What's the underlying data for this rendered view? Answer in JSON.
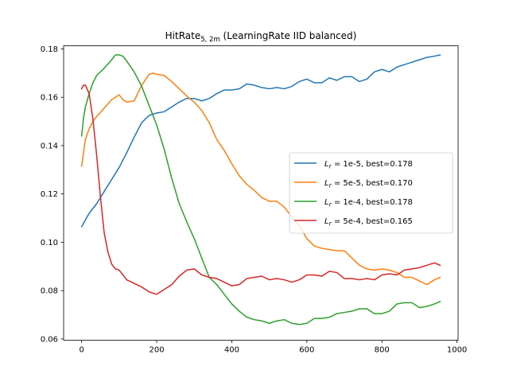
{
  "chart_data": {
    "type": "line",
    "title": {
      "main": "HitRate",
      "subscript": "5, 2m",
      "rest": " (LearningRate IID balanced)"
    },
    "xlabel": "",
    "ylabel": "",
    "xlim": [
      -48,
      1003
    ],
    "ylim": [
      0.0595,
      0.1813
    ],
    "xticks": [
      0,
      200,
      400,
      600,
      800,
      1000
    ],
    "yticks": [
      0.06,
      0.08,
      0.1,
      0.12,
      0.14,
      0.16,
      0.18
    ],
    "xtick_labels": [
      "0",
      "200",
      "400",
      "600",
      "800",
      "1000"
    ],
    "ytick_labels": [
      "0.06",
      "0.08",
      "0.10",
      "0.12",
      "0.14",
      "0.16",
      "0.18"
    ],
    "grid": false,
    "legend_position": "center-right",
    "series": [
      {
        "name": "1e-5",
        "best_label": ", best=0.178",
        "color": "#1f77b4",
        "x": [
          0,
          20,
          40,
          60,
          80,
          100,
          120,
          140,
          160,
          180,
          200,
          220,
          240,
          260,
          280,
          300,
          320,
          340,
          360,
          380,
          400,
          420,
          440,
          460,
          480,
          500,
          520,
          540,
          560,
          580,
          600,
          620,
          640,
          660,
          680,
          700,
          720,
          740,
          760,
          780,
          800,
          820,
          840,
          860,
          880,
          900,
          920,
          940,
          955
        ],
        "y": [
          0.1065,
          0.112,
          0.116,
          0.121,
          0.126,
          0.131,
          0.137,
          0.1435,
          0.1495,
          0.1525,
          0.1535,
          0.154,
          0.156,
          0.158,
          0.1595,
          0.1595,
          0.1585,
          0.1595,
          0.1615,
          0.163,
          0.163,
          0.1635,
          0.1655,
          0.165,
          0.164,
          0.1635,
          0.164,
          0.1635,
          0.1645,
          0.1665,
          0.1675,
          0.166,
          0.166,
          0.168,
          0.167,
          0.1685,
          0.1685,
          0.1665,
          0.1675,
          0.1705,
          0.1715,
          0.1705,
          0.1725,
          0.1735,
          0.1745,
          0.1755,
          0.1765,
          0.177,
          0.1775
        ]
      },
      {
        "name": "5e-5",
        "best_label": ", best=0.170",
        "color": "#ff7f0e",
        "x": [
          0,
          10,
          20,
          30,
          40,
          60,
          80,
          100,
          110,
          120,
          140,
          160,
          180,
          190,
          200,
          220,
          240,
          260,
          280,
          300,
          320,
          340,
          360,
          380,
          400,
          420,
          440,
          460,
          480,
          500,
          520,
          540,
          560,
          580,
          600,
          620,
          640,
          660,
          680,
          700,
          720,
          740,
          760,
          780,
          800,
          820,
          840,
          860,
          880,
          900,
          920,
          940,
          955
        ],
        "y": [
          0.1315,
          0.1425,
          0.147,
          0.15,
          0.152,
          0.1555,
          0.159,
          0.161,
          0.159,
          0.158,
          0.1585,
          0.165,
          0.1695,
          0.17,
          0.1695,
          0.169,
          0.1665,
          0.1635,
          0.1605,
          0.158,
          0.1545,
          0.1495,
          0.1425,
          0.138,
          0.1325,
          0.1275,
          0.124,
          0.1215,
          0.1185,
          0.117,
          0.117,
          0.1145,
          0.1105,
          0.107,
          0.1015,
          0.0985,
          0.0975,
          0.097,
          0.0965,
          0.0965,
          0.0935,
          0.0905,
          0.089,
          0.0885,
          0.089,
          0.0885,
          0.0875,
          0.0855,
          0.0855,
          0.084,
          0.0825,
          0.0845,
          0.0855
        ]
      },
      {
        "name": "1e-4",
        "best_label": ", best=0.178",
        "color": "#2ca02c",
        "x": [
          0,
          5,
          10,
          20,
          30,
          40,
          60,
          80,
          90,
          100,
          110,
          120,
          140,
          160,
          180,
          200,
          220,
          240,
          260,
          280,
          300,
          320,
          340,
          360,
          380,
          400,
          420,
          440,
          460,
          480,
          500,
          520,
          540,
          560,
          580,
          600,
          620,
          640,
          660,
          680,
          700,
          720,
          740,
          760,
          780,
          800,
          820,
          840,
          860,
          880,
          900,
          920,
          940,
          955
        ],
        "y": [
          0.144,
          0.1515,
          0.156,
          0.1615,
          0.166,
          0.169,
          0.172,
          0.1755,
          0.1775,
          0.1775,
          0.177,
          0.175,
          0.1705,
          0.1645,
          0.1565,
          0.1485,
          0.1385,
          0.1265,
          0.116,
          0.1085,
          0.1015,
          0.0935,
          0.0855,
          0.0825,
          0.0785,
          0.0745,
          0.0715,
          0.069,
          0.068,
          0.0675,
          0.0665,
          0.0675,
          0.068,
          0.0665,
          0.066,
          0.0665,
          0.0685,
          0.0685,
          0.069,
          0.0705,
          0.071,
          0.0715,
          0.0725,
          0.0725,
          0.0705,
          0.0705,
          0.0715,
          0.0745,
          0.075,
          0.075,
          0.073,
          0.0735,
          0.0745,
          0.0755
        ]
      },
      {
        "name": "5e-4",
        "best_label": ", best=0.165",
        "color": "#d62728",
        "x": [
          0,
          5,
          10,
          20,
          30,
          40,
          50,
          60,
          70,
          80,
          90,
          100,
          110,
          120,
          140,
          160,
          180,
          200,
          220,
          240,
          260,
          280,
          300,
          320,
          340,
          360,
          380,
          400,
          420,
          440,
          460,
          480,
          500,
          520,
          540,
          560,
          580,
          600,
          620,
          640,
          660,
          680,
          700,
          720,
          740,
          760,
          780,
          800,
          820,
          840,
          860,
          880,
          900,
          920,
          940,
          955
        ],
        "y": [
          0.1635,
          0.165,
          0.165,
          0.1615,
          0.151,
          0.136,
          0.119,
          0.104,
          0.096,
          0.091,
          0.089,
          0.0885,
          0.0865,
          0.0845,
          0.083,
          0.0815,
          0.0795,
          0.0785,
          0.0805,
          0.0825,
          0.086,
          0.0885,
          0.089,
          0.0865,
          0.0855,
          0.085,
          0.0835,
          0.082,
          0.0825,
          0.085,
          0.0855,
          0.086,
          0.0845,
          0.085,
          0.0845,
          0.0835,
          0.0845,
          0.0865,
          0.0865,
          0.086,
          0.088,
          0.0875,
          0.085,
          0.085,
          0.0845,
          0.085,
          0.0845,
          0.0865,
          0.087,
          0.0865,
          0.0885,
          0.089,
          0.0895,
          0.0905,
          0.0915,
          0.0905
        ]
      }
    ]
  }
}
